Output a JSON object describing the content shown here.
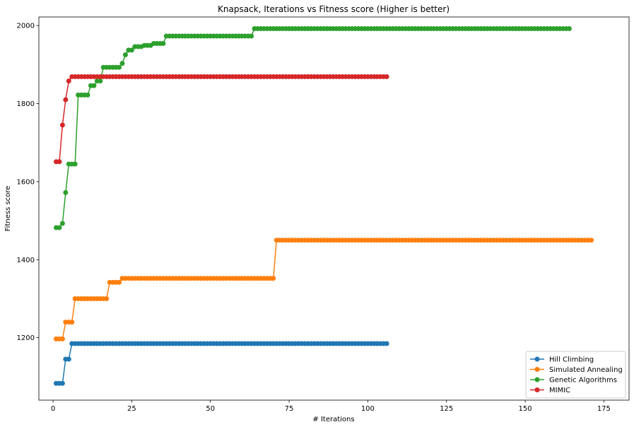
{
  "chart_data": {
    "type": "line",
    "title": "Knapsack, Iterations vs Fitness score (Higher is better)",
    "xlabel": "# Iterations",
    "ylabel": "Fitness score",
    "xlim": [
      -4.5,
      183
    ],
    "ylim": [
      1040,
      2022
    ],
    "xticks": [
      0,
      25,
      50,
      75,
      100,
      125,
      150,
      175
    ],
    "yticks": [
      1200,
      1400,
      1600,
      1800,
      2000
    ],
    "grid": false,
    "legend_position": "lower right",
    "series": [
      {
        "name": "Hill Climbing",
        "color": "#1f77b4",
        "marker": "circle",
        "x_start": 1,
        "steps": [
          [
            1,
            1083
          ],
          [
            4,
            1145
          ],
          [
            6,
            1185
          ]
        ],
        "x_end": 106
      },
      {
        "name": "Simulated Annealing",
        "color": "#ff7f0e",
        "marker": "circle",
        "x_start": 1,
        "steps": [
          [
            1,
            1197
          ],
          [
            4,
            1240
          ],
          [
            7,
            1300
          ],
          [
            18,
            1342
          ],
          [
            22,
            1352
          ],
          [
            71,
            1450
          ]
        ],
        "x_end": 171
      },
      {
        "name": "Genetic Algorithms",
        "color": "#2ca02c",
        "marker": "circle",
        "x_start": 1,
        "steps": [
          [
            1,
            1482
          ],
          [
            3,
            1493
          ],
          [
            4,
            1572
          ],
          [
            5,
            1645
          ],
          [
            8,
            1822
          ],
          [
            12,
            1846
          ],
          [
            14,
            1858
          ],
          [
            16,
            1893
          ],
          [
            22,
            1903
          ],
          [
            23,
            1925
          ],
          [
            24,
            1937
          ],
          [
            26,
            1946
          ],
          [
            29,
            1949
          ],
          [
            32,
            1954
          ],
          [
            36,
            1973
          ],
          [
            64,
            1992
          ]
        ],
        "x_end": 164
      },
      {
        "name": "MIMIC",
        "color": "#d62728",
        "marker": "circle",
        "x_start": 1,
        "steps": [
          [
            1,
            1651
          ],
          [
            3,
            1745
          ],
          [
            4,
            1810
          ],
          [
            5,
            1858
          ],
          [
            6,
            1869
          ]
        ],
        "x_end": 106
      }
    ]
  }
}
